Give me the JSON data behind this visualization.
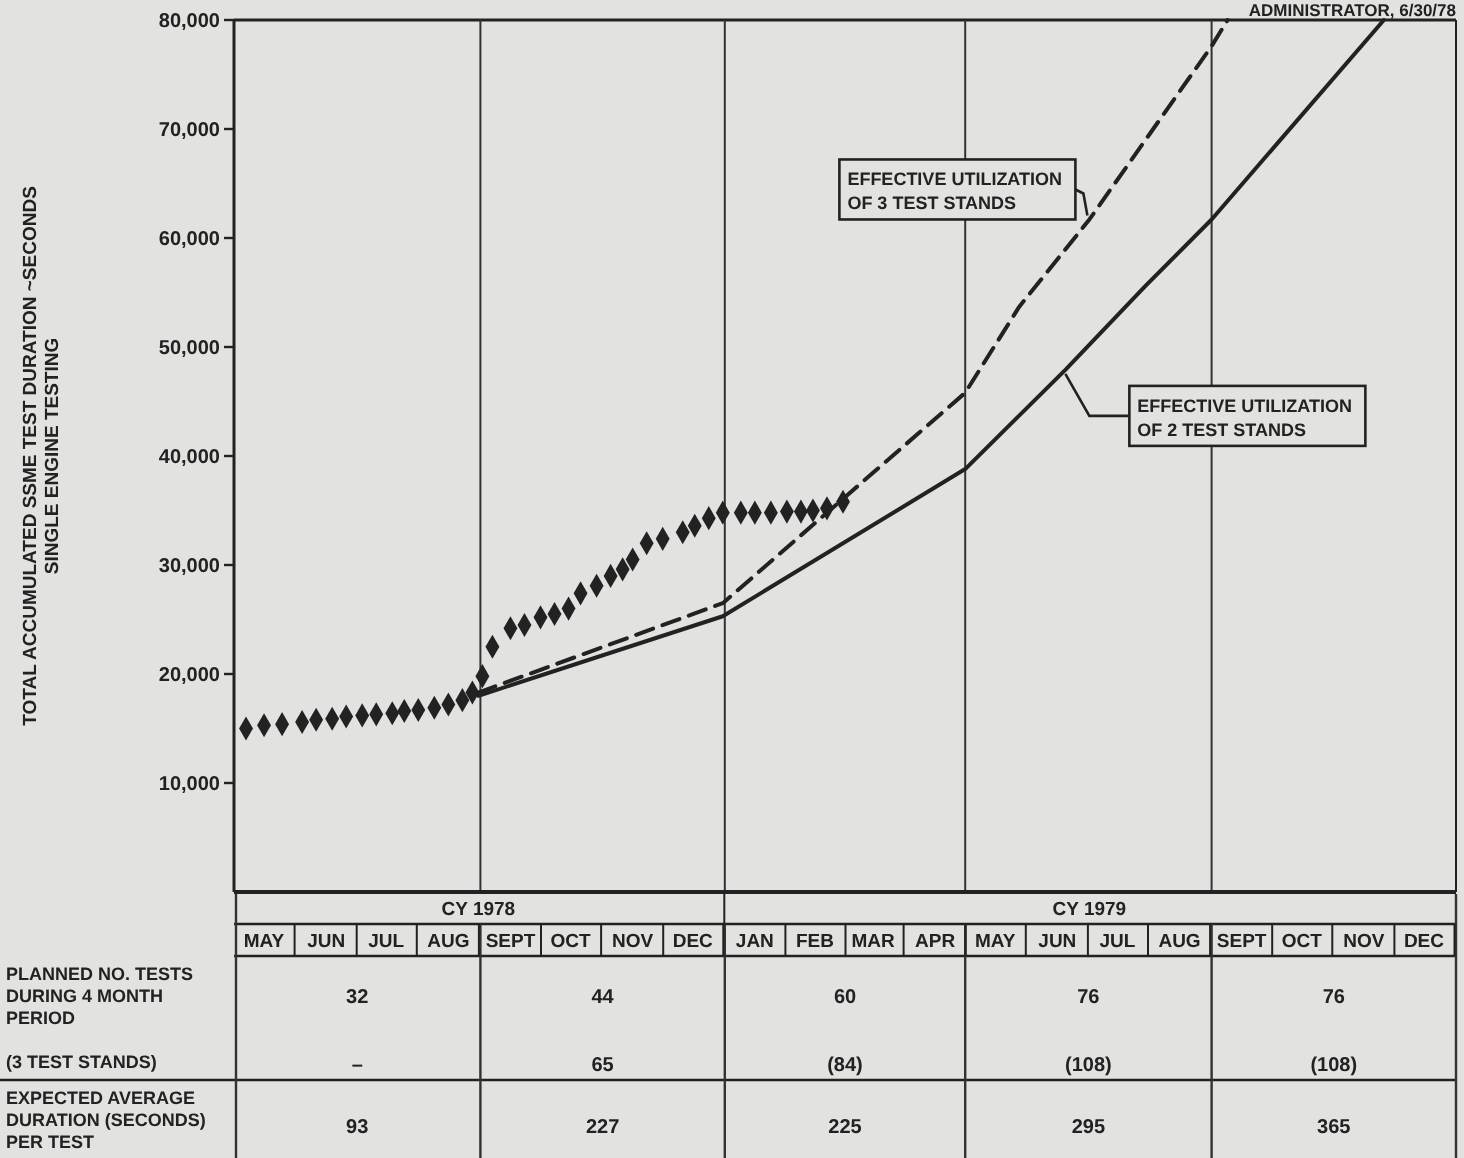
{
  "chart_data": {
    "type": "line",
    "ylabel": "TOTAL ACCUMULATED SSME TEST DURATION ~SECONDS\nSINGLE ENGINE TESTING",
    "xlim": [
      "1978-05-01",
      "1980-01-01"
    ],
    "xticks": [
      {
        "value": "1978-05-16",
        "label": "MAY"
      },
      {
        "value": "1978-06-16",
        "label": "JUN"
      },
      {
        "value": "1978-07-16",
        "label": "JUL"
      },
      {
        "value": "1978-08-16",
        "label": "AUG"
      },
      {
        "value": "1978-09-16",
        "label": "SEPT"
      },
      {
        "value": "1978-10-16",
        "label": "OCT"
      },
      {
        "value": "1978-11-16",
        "label": "NOV"
      },
      {
        "value": "1978-12-16",
        "label": "DEC"
      },
      {
        "value": "1979-01-16",
        "label": "JAN"
      },
      {
        "value": "1979-02-15",
        "label": "FEB"
      },
      {
        "value": "1979-03-16",
        "label": "MAR"
      },
      {
        "value": "1979-04-16",
        "label": "APR"
      },
      {
        "value": "1979-05-16",
        "label": "MAY"
      },
      {
        "value": "1979-06-16",
        "label": "JUN"
      },
      {
        "value": "1979-07-16",
        "label": "JUL"
      },
      {
        "value": "1979-08-16",
        "label": "AUG"
      },
      {
        "value": "1979-09-16",
        "label": "SEPT"
      },
      {
        "value": "1979-10-16",
        "label": "OCT"
      },
      {
        "value": "1979-11-16",
        "label": "NOV"
      },
      {
        "value": "1979-12-16",
        "label": "DEC"
      }
    ],
    "ylim": [
      0,
      80000
    ],
    "yticks": [
      {
        "value": 10000,
        "label": "10,000"
      },
      {
        "value": 20000,
        "label": "20,000"
      },
      {
        "value": 30000,
        "label": "30,000"
      },
      {
        "value": 40000,
        "label": "40,000"
      },
      {
        "value": 50000,
        "label": "50,000"
      },
      {
        "value": 60000,
        "label": "60,000"
      },
      {
        "value": 70000,
        "label": "70,000"
      },
      {
        "value": 80000,
        "label": "80,000"
      }
    ],
    "grid": false,
    "ref_lines": [
      {
        "axis": "x",
        "value": "1978-09-01",
        "color": "#333333"
      },
      {
        "axis": "x",
        "value": "1979-01-01",
        "color": "#333333"
      },
      {
        "axis": "x",
        "value": "1979-05-01",
        "color": "#333333"
      },
      {
        "axis": "x",
        "value": "1979-09-01",
        "color": "#333333"
      }
    ],
    "series": [
      {
        "type": "scatter",
        "marker": "diamond",
        "color": "#222222",
        "x": [
          "1978-05-07",
          "1978-05-16",
          "1978-05-25",
          "1978-06-04",
          "1978-06-11",
          "1978-06-19",
          "1978-06-26",
          "1978-07-04",
          "1978-07-11",
          "1978-07-19",
          "1978-07-25",
          "1978-08-01",
          "1978-08-09",
          "1978-08-16",
          "1978-08-23",
          "1978-08-28",
          "1978-09-02",
          "1978-09-07",
          "1978-09-16",
          "1978-09-23",
          "1978-10-01",
          "1978-10-08",
          "1978-10-15",
          "1978-10-21",
          "1978-10-29",
          "1978-11-05",
          "1978-11-11",
          "1978-11-16",
          "1978-11-23",
          "1978-12-01",
          "1978-12-11",
          "1978-12-17",
          "1978-12-24",
          "1978-12-31",
          "1979-01-09",
          "1979-01-16",
          "1979-01-24",
          "1979-02-01",
          "1979-02-08",
          "1979-02-14",
          "1979-02-21",
          "1979-03-01"
        ],
        "values": [
          15000,
          15300,
          15400,
          15600,
          15800,
          15900,
          16100,
          16200,
          16300,
          16400,
          16600,
          16700,
          16900,
          17200,
          17600,
          18300,
          19800,
          22500,
          24200,
          24500,
          25200,
          25500,
          26000,
          27400,
          28100,
          29000,
          29600,
          30500,
          32000,
          32400,
          33000,
          33600,
          34300,
          34800,
          34800,
          34800,
          34800,
          34900,
          34900,
          35000,
          35200,
          35800
        ]
      },
      {
        "marker": "none",
        "line_style": "dashed",
        "color": "#222222",
        "x": [
          "1978-08-31",
          "1978-12-31",
          "1979-05-01",
          "1979-05-28",
          "1979-07-02",
          "1979-09-01",
          "1979-09-09"
        ],
        "values": [
          18300,
          26500,
          45800,
          53700,
          61700,
          77600,
          80000
        ]
      },
      {
        "marker": "none",
        "line_style": "solid",
        "color": "#222222",
        "x": [
          "1978-08-31",
          "1978-12-31",
          "1979-05-01",
          "1979-06-20",
          "1979-07-30",
          "1979-09-01",
          "1979-11-26"
        ],
        "values": [
          18000,
          25300,
          38800,
          47900,
          55600,
          61700,
          80000
        ]
      }
    ],
    "annotations": [
      "ADMINISTRATOR, 6/30/78",
      {
        "text": "EFFECTIVE UTILIZATION\nOF 3 TEST STANDS",
        "x": "1979-07-01",
        "y": 61700
      },
      {
        "text": "EFFECTIVE UTILIZATION\nOF 2 TEST STANDS",
        "x": "1979-06-20",
        "y": 47900
      },
      "CY 1978",
      "CY 1979",
      "PLANNED NO. TESTS\nDURING 4 MONTH\nPERIOD",
      "(3 TEST STANDS)",
      "EXPECTED AVERAGE\nDURATION (SECONDS)\nPER TEST",
      "32",
      "44",
      "60",
      "76",
      "76",
      "–",
      "65",
      "(84)",
      "(108)",
      "(108)",
      "93",
      "227",
      "225",
      "295",
      "365"
    ]
  }
}
